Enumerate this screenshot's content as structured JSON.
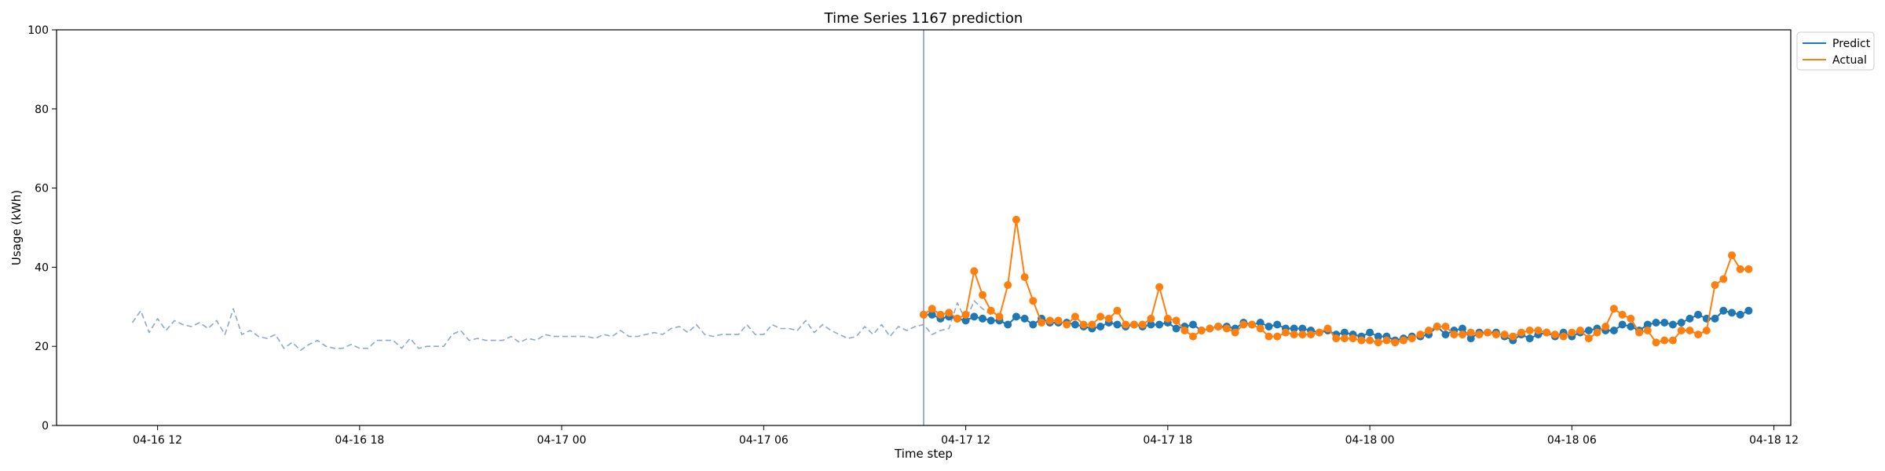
{
  "chart_data": {
    "type": "line",
    "title": "Time Series 1167 prediction",
    "xlabel": "Time step",
    "ylabel": "Usage (kWh)",
    "ylim": [
      0,
      100
    ],
    "xlim": [
      "2025-04-16 09:00",
      "2025-04-18 12:30"
    ],
    "y_ticks": [
      0,
      20,
      40,
      60,
      80,
      100
    ],
    "x_ticks": [
      {
        "at": "2025-04-16 12:00",
        "label": "04-16 12"
      },
      {
        "at": "2025-04-16 18:00",
        "label": "04-16 18"
      },
      {
        "at": "2025-04-17 00:00",
        "label": "04-17 00"
      },
      {
        "at": "2025-04-17 06:00",
        "label": "04-17 06"
      },
      {
        "at": "2025-04-17 12:00",
        "label": "04-17 12"
      },
      {
        "at": "2025-04-17 18:00",
        "label": "04-17 18"
      },
      {
        "at": "2025-04-18 00:00",
        "label": "04-18 00"
      },
      {
        "at": "2025-04-18 06:00",
        "label": "04-18 06"
      },
      {
        "at": "2025-04-18 12:00",
        "label": "04-18 12"
      }
    ],
    "forecast_start": "2025-04-17 10:45",
    "interval_minutes": 15,
    "grid": false,
    "legend_position": "outside-top-right",
    "series": [
      {
        "role": "history",
        "color": "#8fa8c8",
        "dashed": true,
        "start": "2025-04-16 11:15",
        "values": [
          26,
          29,
          23.5,
          27,
          24,
          26.5,
          25.5,
          25,
          26,
          24.5,
          26.5,
          23,
          29.5,
          23,
          24,
          22.5,
          22,
          23,
          19.5,
          21,
          19,
          20.5,
          21.5,
          20,
          19.5,
          19.5,
          20.5,
          19.5,
          19.5,
          21.5,
          21.5,
          21.5,
          19.5,
          22,
          19.5,
          20,
          20,
          20,
          23,
          24,
          21.5,
          22,
          21.5,
          21.5,
          21.5,
          22.5,
          21,
          22,
          21.5,
          23,
          22.5,
          22.5,
          22.5,
          22.5,
          22.5,
          22,
          23,
          22.5,
          24,
          22.5,
          22.5,
          23,
          23.5,
          23,
          24.5,
          25,
          23.5,
          25.5,
          23,
          22.5,
          23,
          23,
          23,
          25.5,
          23,
          23,
          25.5,
          24.5,
          24.5,
          24,
          26.5,
          23.5,
          25.5,
          24,
          23,
          22,
          22.5,
          25,
          23,
          25.5,
          22.5,
          25,
          24,
          25,
          25.5,
          23,
          24,
          24.5,
          31,
          26.5,
          31.5,
          29.5,
          28
        ]
      },
      {
        "name": "Predict",
        "role": "predict",
        "color": "#1f77b4",
        "start": "2025-04-17 10:45",
        "values": [
          28,
          28,
          27,
          27.5,
          27,
          26.5,
          27.5,
          27,
          26.5,
          26.5,
          25.5,
          27.5,
          27,
          25.5,
          27,
          26,
          26,
          26,
          25.5,
          25,
          24.5,
          25,
          26,
          25.5,
          25,
          25.5,
          25,
          25.5,
          25.5,
          26,
          24.5,
          25,
          25.5,
          24,
          24.5,
          25,
          25,
          24.5,
          26,
          25.5,
          26,
          25,
          25.5,
          24.5,
          24.5,
          24.5,
          24,
          23.5,
          24,
          23,
          23.5,
          23,
          22.5,
          23.5,
          22.5,
          22.5,
          21.5,
          22,
          22.5,
          22.5,
          23,
          25,
          23,
          24,
          24.5,
          22,
          23.5,
          23.5,
          23.5,
          22.5,
          21.5,
          23,
          22,
          23,
          23.5,
          22.5,
          23.5,
          22.5,
          23.5,
          24,
          24.5,
          24,
          24,
          25.5,
          25,
          24,
          25.5,
          26,
          26,
          25.5,
          26,
          27,
          28,
          27,
          27,
          29,
          28.5,
          28,
          29
        ]
      },
      {
        "name": "Actual",
        "role": "actual",
        "color": "#ff7f0e",
        "start": "2025-04-17 10:45",
        "values": [
          28,
          29.5,
          28,
          28.5,
          27,
          28,
          39,
          33,
          29,
          27.5,
          35.5,
          52,
          37.5,
          31.5,
          26,
          26.5,
          26.5,
          25.5,
          27.5,
          25.5,
          25.5,
          27.5,
          27,
          29,
          25.5,
          25.5,
          25.5,
          27,
          35,
          27,
          26.5,
          24,
          22.5,
          24,
          24.5,
          25,
          24.5,
          23.5,
          25.5,
          25.5,
          24.5,
          22.5,
          22.5,
          23.5,
          23,
          23,
          23,
          23.5,
          24.5,
          22,
          22,
          22,
          21.5,
          21.5,
          21,
          21.5,
          21,
          21.5,
          22,
          23,
          24,
          25,
          25,
          23,
          23,
          23.5,
          23,
          23.5,
          23,
          23,
          22.5,
          23.5,
          24,
          24,
          23.5,
          23,
          22.5,
          23.5,
          24,
          22,
          23.5,
          25,
          29.5,
          28,
          27,
          23.5,
          24,
          21,
          21.5,
          21.5,
          24,
          24,
          23,
          24,
          35.5,
          37,
          43,
          39.5,
          39.5
        ]
      }
    ]
  }
}
